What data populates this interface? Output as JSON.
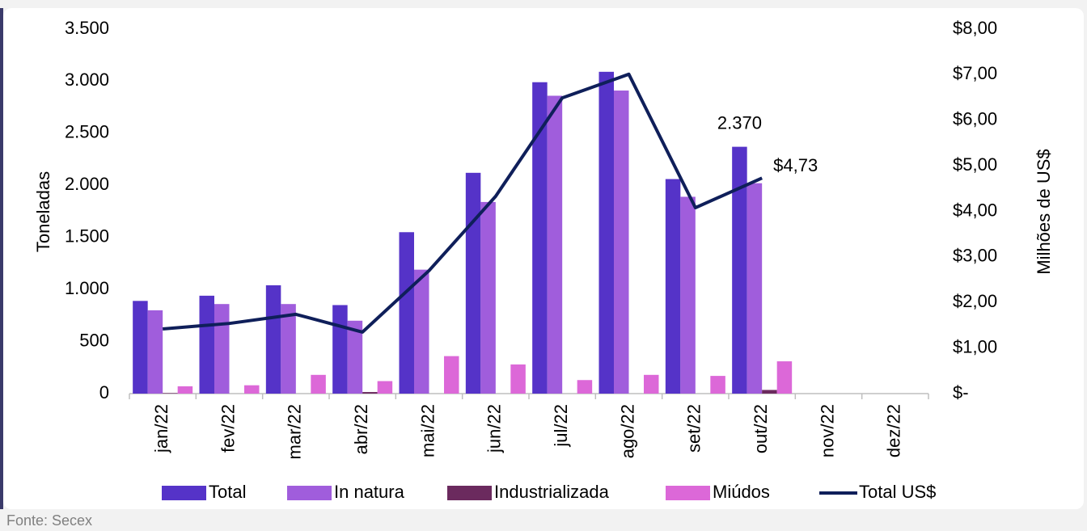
{
  "chart_data": {
    "type": "bar",
    "categories": [
      "jan/22",
      "fev/22",
      "mar/22",
      "abr/22",
      "mai/22",
      "jun/22",
      "jul/22",
      "ago/22",
      "set/22",
      "out/22",
      "nov/22",
      "dez/22"
    ],
    "series": [
      {
        "name": "Total",
        "color": "#5533c8",
        "values": [
          890,
          940,
          1040,
          850,
          1550,
          2120,
          2990,
          3090,
          2060,
          2370,
          null,
          null
        ],
        "value_labels": [
          null,
          null,
          null,
          null,
          null,
          null,
          null,
          null,
          null,
          "2.370",
          null,
          null
        ]
      },
      {
        "name": "In natura",
        "color": "#a05ddc",
        "values": [
          800,
          860,
          860,
          700,
          1190,
          1840,
          2860,
          2910,
          1890,
          2020,
          null,
          null
        ]
      },
      {
        "name": "Industrializada",
        "color": "#6b2a5e",
        "values": [
          5,
          0,
          0,
          15,
          0,
          0,
          0,
          0,
          0,
          35,
          null,
          null
        ]
      },
      {
        "name": "Miúdos",
        "color": "#dc68d8",
        "values": [
          70,
          80,
          180,
          120,
          360,
          280,
          130,
          180,
          170,
          310,
          null,
          null
        ]
      },
      {
        "name": "Total US$",
        "color": "#0f1f5a",
        "type": "line",
        "axis": "y2",
        "values": [
          1.42,
          1.54,
          1.74,
          1.35,
          2.7,
          4.33,
          6.49,
          7.01,
          4.08,
          4.73,
          null,
          null
        ],
        "value_labels": [
          null,
          null,
          null,
          null,
          null,
          null,
          null,
          null,
          null,
          "$4,73",
          null,
          null
        ]
      }
    ],
    "ylabel": "Toneladas",
    "y2label": "Milhões de US$",
    "ylim": [
      0,
      3500
    ],
    "yticks": [
      0,
      500,
      {
        "value": 1000,
        "label": "1.000"
      },
      {
        "value": 1500,
        "label": "1.500"
      },
      {
        "value": 2000,
        "label": "2.000"
      },
      {
        "value": 2500,
        "label": "2.500"
      },
      {
        "value": 3000,
        "label": "3.000"
      },
      {
        "value": 3500,
        "label": "3.500"
      }
    ],
    "y2lim": [
      0,
      8
    ],
    "y2ticks": [
      {
        "value": 0,
        "label": "$-"
      },
      {
        "value": 1,
        "label": "$1,00"
      },
      {
        "value": 2,
        "label": "$2,00"
      },
      {
        "value": 3,
        "label": "$3,00"
      },
      {
        "value": 4,
        "label": "$4,00"
      },
      {
        "value": 5,
        "label": "$5,00"
      },
      {
        "value": 6,
        "label": "$6,00"
      },
      {
        "value": 7,
        "label": "$7,00"
      },
      {
        "value": 8,
        "label": "$8,00"
      }
    ],
    "source": "Fonte: Secex",
    "legend": "bottom"
  }
}
